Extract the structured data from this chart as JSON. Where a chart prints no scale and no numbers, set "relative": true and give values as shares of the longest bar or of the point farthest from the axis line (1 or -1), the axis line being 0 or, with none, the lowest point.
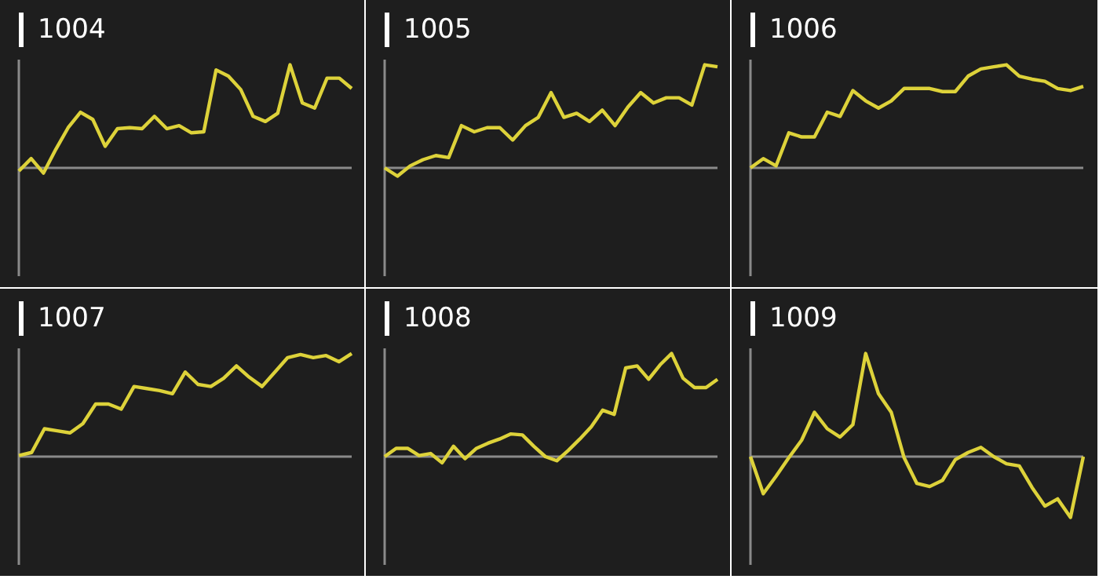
{
  "chart_data": [
    {
      "type": "line",
      "title": "1004",
      "relative": true,
      "tick_labels": false,
      "categories": [
        null,
        null,
        null,
        null,
        null,
        null,
        null,
        null,
        null,
        null,
        null,
        null,
        null,
        null,
        null,
        null,
        null,
        null,
        null,
        null,
        null,
        null,
        null,
        null,
        null,
        null,
        null,
        null
      ],
      "series": [
        {
          "color": "#ddd23a",
          "values": [
            -0.03,
            0.09,
            -0.05,
            0.18,
            0.39,
            0.54,
            0.47,
            0.21,
            0.38,
            0.39,
            0.38,
            0.5,
            0.38,
            0.41,
            0.34,
            0.35,
            0.95,
            0.89,
            0.76,
            0.5,
            0.45,
            0.53,
            1,
            0.63,
            0.58,
            0.87,
            0.87,
            0.77
          ]
        }
      ]
    },
    {
      "type": "line",
      "title": "1005",
      "relative": true,
      "tick_labels": false,
      "categories": [
        null,
        null,
        null,
        null,
        null,
        null,
        null,
        null,
        null,
        null,
        null,
        null,
        null,
        null,
        null,
        null,
        null,
        null,
        null,
        null,
        null,
        null,
        null,
        null,
        null,
        null,
        null
      ],
      "series": [
        {
          "color": "#ddd23a",
          "values": [
            0,
            -0.08,
            0.02,
            0.08,
            0.12,
            0.1,
            0.41,
            0.35,
            0.39,
            0.39,
            0.27,
            0.41,
            0.49,
            0.73,
            0.49,
            0.53,
            0.45,
            0.56,
            0.41,
            0.59,
            0.73,
            0.63,
            0.68,
            0.68,
            0.61,
            1,
            0.98
          ]
        }
      ]
    },
    {
      "type": "line",
      "title": "1006",
      "relative": true,
      "tick_labels": false,
      "categories": [
        null,
        null,
        null,
        null,
        null,
        null,
        null,
        null,
        null,
        null,
        null,
        null,
        null,
        null,
        null,
        null,
        null,
        null,
        null,
        null,
        null,
        null,
        null,
        null,
        null,
        null,
        null
      ],
      "series": [
        {
          "color": "#ddd23a",
          "values": [
            0,
            0.09,
            0.02,
            0.34,
            0.3,
            0.3,
            0.54,
            0.5,
            0.75,
            0.65,
            0.58,
            0.65,
            0.77,
            0.77,
            0.77,
            0.74,
            0.74,
            0.89,
            0.96,
            0.98,
            1,
            0.89,
            0.86,
            0.84,
            0.77,
            0.75,
            0.79
          ]
        }
      ]
    },
    {
      "type": "line",
      "title": "1007",
      "relative": true,
      "tick_labels": false,
      "categories": [
        null,
        null,
        null,
        null,
        null,
        null,
        null,
        null,
        null,
        null,
        null,
        null,
        null,
        null,
        null,
        null,
        null,
        null,
        null,
        null,
        null,
        null,
        null,
        null,
        null,
        null,
        null
      ],
      "series": [
        {
          "color": "#ddd23a",
          "values": [
            0.01,
            0.04,
            0.27,
            0.25,
            0.23,
            0.32,
            0.51,
            0.51,
            0.46,
            0.68,
            0.66,
            0.64,
            0.61,
            0.82,
            0.7,
            0.68,
            0.76,
            0.88,
            0.77,
            0.68,
            0.82,
            0.96,
            0.99,
            0.96,
            0.98,
            0.92,
            1
          ]
        }
      ]
    },
    {
      "type": "line",
      "title": "1008",
      "relative": true,
      "tick_labels": false,
      "categories": [
        null,
        null,
        null,
        null,
        null,
        null,
        null,
        null,
        null,
        null,
        null,
        null,
        null,
        null,
        null,
        null,
        null,
        null,
        null,
        null,
        null,
        null,
        null,
        null,
        null,
        null,
        null,
        null,
        null,
        null
      ],
      "series": [
        {
          "color": "#ddd23a",
          "values": [
            0,
            0.08,
            0.08,
            0.01,
            0.03,
            -0.06,
            0.1,
            -0.02,
            0.08,
            0.13,
            0.17,
            0.22,
            0.21,
            0.1,
            0,
            -0.04,
            0.06,
            0.17,
            0.29,
            0.45,
            0.41,
            0.86,
            0.88,
            0.75,
            0.89,
            1,
            0.76,
            0.67,
            0.67,
            0.75
          ]
        }
      ]
    },
    {
      "type": "line",
      "title": "1009",
      "relative": true,
      "tick_labels": false,
      "categories": [
        null,
        null,
        null,
        null,
        null,
        null,
        null,
        null,
        null,
        null,
        null,
        null,
        null,
        null,
        null,
        null,
        null,
        null,
        null,
        null,
        null,
        null,
        null,
        null,
        null,
        null,
        null
      ],
      "series": [
        {
          "color": "#ddd23a",
          "values": [
            0,
            -0.36,
            -0.19,
            -0.01,
            0.16,
            0.43,
            0.27,
            0.19,
            0.31,
            1,
            0.61,
            0.43,
            -0.01,
            -0.26,
            -0.29,
            -0.23,
            -0.03,
            0.04,
            0.09,
            0,
            -0.07,
            -0.09,
            -0.3,
            -0.48,
            -0.41,
            -0.59,
            0
          ]
        }
      ]
    }
  ]
}
